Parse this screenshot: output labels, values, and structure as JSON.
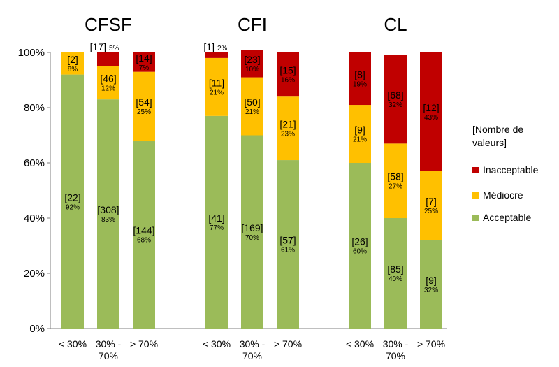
{
  "chart_data": {
    "type": "bar",
    "stacked": true,
    "groups": [
      {
        "title": "CFSF",
        "categories": [
          "< 30%",
          "30% - 70%",
          "> 70%"
        ],
        "series": [
          {
            "name": "Acceptable",
            "values": [
              92,
              83,
              68
            ],
            "counts": [
              "[22]",
              "[308]",
              "[144]"
            ],
            "labels": [
              "92%",
              "83%",
              "68%"
            ]
          },
          {
            "name": "Médiocre",
            "values": [
              8,
              12,
              25
            ],
            "counts": [
              "[2]",
              "[46]",
              "[54]"
            ],
            "labels": [
              "8%",
              "12%",
              "25%"
            ]
          },
          {
            "name": "Inacceptable",
            "values": [
              0,
              5,
              7
            ],
            "counts": [
              "",
              "[17]",
              "[14]"
            ],
            "labels": [
              "",
              "5%",
              "7%"
            ]
          }
        ]
      },
      {
        "title": "CFI",
        "categories": [
          "< 30%",
          "30% - 70%",
          "> 70%"
        ],
        "series": [
          {
            "name": "Acceptable",
            "values": [
              77,
              70,
              61
            ],
            "counts": [
              "[41]",
              "[169]",
              "[57]"
            ],
            "labels": [
              "77%",
              "70%",
              "61%"
            ]
          },
          {
            "name": "Médiocre",
            "values": [
              21,
              21,
              23
            ],
            "counts": [
              "[11]",
              "[50]",
              "[21]"
            ],
            "labels": [
              "21%",
              "21%",
              "23%"
            ]
          },
          {
            "name": "Inacceptable",
            "values": [
              2,
              10,
              16
            ],
            "counts": [
              "[1]",
              "[23]",
              "[15]"
            ],
            "labels": [
              "2%",
              "10%",
              "16%"
            ]
          }
        ]
      },
      {
        "title": "CL",
        "categories": [
          "< 30%",
          "30% - 70%",
          "> 70%"
        ],
        "series": [
          {
            "name": "Acceptable",
            "values": [
              60,
              40,
              32
            ],
            "counts": [
              "[26]",
              "[85]",
              "[9]"
            ],
            "labels": [
              "60%",
              "40%",
              "32%"
            ]
          },
          {
            "name": "Médiocre",
            "values": [
              21,
              27,
              25
            ],
            "counts": [
              "[9]",
              "[58]",
              "[7]"
            ],
            "labels": [
              "21%",
              "27%",
              "25%"
            ]
          },
          {
            "name": "Inacceptable",
            "values": [
              19,
              32,
              43
            ],
            "counts": [
              "[8]",
              "[68]",
              "[12]"
            ],
            "labels": [
              "19%",
              "32%",
              "43%"
            ]
          }
        ]
      }
    ],
    "yticks": [
      "0%",
      "20%",
      "40%",
      "60%",
      "80%",
      "100%"
    ],
    "ylim": [
      0,
      100
    ],
    "grid": false,
    "legend": {
      "position": "right",
      "title_lines": [
        "[Nombre de",
        "valeurs]"
      ],
      "items": [
        "Inacceptable",
        "Médiocre",
        "Acceptable"
      ]
    },
    "colors": {
      "Acceptable": "#9BBB59",
      "Médiocre": "#FFC000",
      "Inacceptable": "#C00000"
    }
  }
}
